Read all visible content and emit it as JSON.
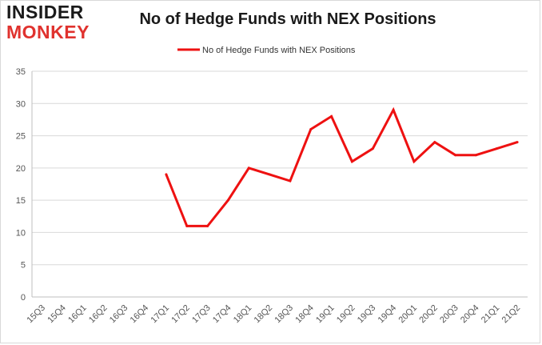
{
  "header": {
    "logo_line1": "INSIDER",
    "logo_line2": "MONKEY"
  },
  "chart_data": {
    "type": "line",
    "title": "No of Hedge Funds with NEX Positions",
    "xlabel": "",
    "ylabel": "",
    "categories": [
      "15Q3",
      "15Q4",
      "16Q1",
      "16Q2",
      "16Q3",
      "16Q4",
      "17Q1",
      "17Q2",
      "17Q3",
      "17Q4",
      "18Q1",
      "18Q2",
      "18Q3",
      "18Q4",
      "19Q1",
      "19Q2",
      "19Q3",
      "19Q4",
      "20Q1",
      "20Q2",
      "20Q3",
      "20Q4",
      "21Q1",
      "21Q2"
    ],
    "series": [
      {
        "name": "No of Hedge Funds with NEX Positions",
        "values": [
          null,
          null,
          null,
          null,
          null,
          null,
          19,
          11,
          11,
          15,
          20,
          19,
          18,
          26,
          28,
          21,
          23,
          29,
          21,
          24,
          22,
          22,
          23,
          24
        ],
        "color": "#ee1111"
      }
    ],
    "ylim": [
      0,
      35
    ],
    "yticks": [
      0,
      5,
      10,
      15,
      20,
      25,
      30,
      35
    ],
    "grid": true,
    "legend": "top-center"
  }
}
